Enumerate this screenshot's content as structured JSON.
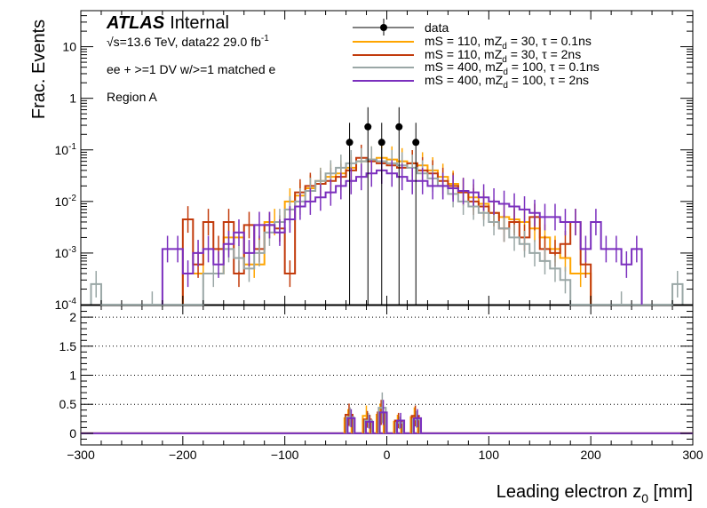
{
  "chart_data": [
    {
      "type": "histogram",
      "panel": "main",
      "ylabel": "Frac. Events",
      "yscale": "log",
      "ylim": [
        0.0001,
        50
      ],
      "xlim": [
        -300,
        300
      ],
      "x_ticks": [
        "−300",
        "−200",
        "−100",
        "0",
        "100",
        "200",
        "300"
      ],
      "y_ticks": [
        {
          "base": "10",
          "exp": "-4",
          "v": 0.0001
        },
        {
          "base": "10",
          "exp": "-3",
          "v": 0.001
        },
        {
          "base": "10",
          "exp": "-2",
          "v": 0.01
        },
        {
          "base": "10",
          "exp": "-1",
          "v": 0.1
        },
        {
          "base": "1",
          "exp": "",
          "v": 1
        },
        {
          "base": "10",
          "exp": "",
          "v": 10
        }
      ],
      "annotations": {
        "atlas": "ATLAS",
        "internal": "Internal",
        "energy": "√s=13.6 TeV, data22 29.0 fb",
        "energy_sup": "-1",
        "selection": "ee + >=1 DV w/>=1 matched e",
        "region": "Region A"
      },
      "data": {
        "name": "data",
        "x": [
          -36.5,
          -18.5,
          -5,
          12,
          28.5
        ],
        "y": [
          0.14,
          0.28,
          0.14,
          0.28,
          0.14
        ]
      },
      "series": [
        {
          "name": "mS = 110, mZ_d = 30, τ = 0.1ns",
          "legend": "mS = 110, mZ",
          "legend_sub": "d",
          "legend_rest": " = 30, τ = 0.1ns",
          "color": "#ffa500",
          "bin_edges": [
            -200,
            -160,
            -140,
            -120,
            -100,
            -90,
            -80,
            -70,
            -60,
            -50,
            -40,
            -30,
            -20,
            -10,
            0,
            10,
            20,
            30,
            40,
            50,
            60,
            70,
            80,
            90,
            100,
            110,
            120,
            130,
            140,
            150,
            160,
            170,
            180,
            200
          ],
          "values": [
            0.0004,
            0.002,
            0.0006,
            0.004,
            0.01,
            0.013,
            0.018,
            0.025,
            0.03,
            0.035,
            0.045,
            0.06,
            0.065,
            0.07,
            0.065,
            0.06,
            0.055,
            0.05,
            0.04,
            0.03,
            0.022,
            0.016,
            0.012,
            0.009,
            0.006,
            0.005,
            0.0045,
            0.004,
            0.003,
            0.002,
            0.0012,
            0.0008,
            0.0004
          ]
        },
        {
          "name": "mS = 110, mZ_d = 30, τ = 2ns",
          "legend": "mS = 110, mZ",
          "legend_sub": "d",
          "legend_rest": " = 30, τ = 2ns",
          "color": "#c23b0c",
          "bin_edges": [
            -200,
            -190,
            -180,
            -170,
            -160,
            -150,
            -140,
            -130,
            -120,
            -110,
            -100,
            -90,
            -80,
            -70,
            -60,
            -50,
            -40,
            -30,
            -20,
            -10,
            0,
            10,
            20,
            30,
            40,
            50,
            60,
            70,
            80,
            90,
            100,
            110,
            120,
            130,
            140,
            150,
            160,
            170,
            180,
            190,
            200
          ],
          "values": [
            0.0045,
            0.0006,
            0.004,
            0.0012,
            0.004,
            0.0004,
            0.0035,
            0.0012,
            0.0035,
            0.003,
            0.0004,
            0.015,
            0.02,
            0.022,
            0.025,
            0.03,
            0.04,
            0.07,
            0.06,
            0.055,
            0.05,
            0.045,
            0.055,
            0.04,
            0.035,
            0.025,
            0.02,
            0.015,
            0.01,
            0.008,
            0.006,
            0.003,
            0.004,
            0.002,
            0.005,
            0.0012,
            0.001,
            0.0015,
            0.004,
            0.0006
          ]
        },
        {
          "name": "mS = 400, mZ_d = 100, τ = 0.1ns",
          "legend": "mS = 400, mZ",
          "legend_sub": "d",
          "legend_rest": " = 100, τ = 0.1ns",
          "color": "#9aa7a6",
          "bin_edges": [
            -290,
            -280,
            -180,
            -160,
            -150,
            -140,
            -130,
            -120,
            -110,
            -100,
            -90,
            -80,
            -70,
            -60,
            -50,
            -40,
            -30,
            -20,
            -10,
            0,
            10,
            20,
            30,
            40,
            50,
            60,
            70,
            80,
            90,
            100,
            110,
            120,
            130,
            140,
            150,
            160,
            170,
            180,
            280,
            290
          ],
          "values": [
            0.00025,
            0.0001,
            0.0004,
            0.0012,
            0.0008,
            0.0005,
            0.001,
            0.0025,
            0.004,
            0.007,
            0.01,
            0.016,
            0.025,
            0.035,
            0.045,
            0.055,
            0.06,
            0.065,
            0.06,
            0.055,
            0.05,
            0.045,
            0.035,
            0.028,
            0.02,
            0.014,
            0.01,
            0.008,
            0.006,
            0.004,
            0.003,
            0.002,
            0.0015,
            0.001,
            0.0007,
            0.0005,
            0.0003,
            0.0001,
            0.00025
          ]
        },
        {
          "name": "mS = 400, mZ_d = 100, τ = 2ns",
          "legend": "mS = 400, mZ",
          "legend_sub": "d",
          "legend_rest": " = 100, τ = 2ns",
          "color": "#7b2fbe",
          "bin_edges": [
            -220,
            -210,
            -200,
            -190,
            -180,
            -170,
            -160,
            -150,
            -140,
            -130,
            -120,
            -110,
            -100,
            -90,
            -80,
            -70,
            -60,
            -50,
            -40,
            -30,
            -20,
            -10,
            0,
            10,
            20,
            30,
            40,
            50,
            60,
            70,
            80,
            90,
            100,
            110,
            120,
            130,
            140,
            150,
            160,
            170,
            180,
            190,
            200,
            210,
            220,
            230,
            240,
            250
          ],
          "values": [
            0.0012,
            0.0012,
            0.0004,
            0.001,
            0.0012,
            0.0006,
            0.0015,
            0.0025,
            0.001,
            0.0035,
            0.0035,
            0.0025,
            0.0045,
            0.008,
            0.01,
            0.012,
            0.015,
            0.02,
            0.025,
            0.03,
            0.035,
            0.04,
            0.035,
            0.03,
            0.025,
            0.025,
            0.02,
            0.02,
            0.018,
            0.016,
            0.015,
            0.012,
            0.01,
            0.009,
            0.008,
            0.007,
            0.006,
            0.005,
            0.005,
            0.004,
            0.004,
            0.0012,
            0.004,
            0.0012,
            0.0012,
            0.0006,
            0.0012
          ]
        }
      ]
    },
    {
      "type": "histogram",
      "panel": "ratio",
      "xlabel": "Leading electron z",
      "xlabel_sub": "0",
      "xlabel_rest": " [mm]",
      "ylim": [
        -0.2,
        2.2
      ],
      "y_ticks": [
        "0",
        "0.5",
        "1",
        "1.5",
        "2"
      ],
      "y_tick_values": [
        0,
        0.5,
        1,
        1.5,
        2
      ],
      "gridlines_y": [
        0.5,
        1,
        1.5,
        2
      ],
      "xlim": [
        -300,
        300
      ],
      "spikes": [
        {
          "x": -36.5,
          "values": {
            "orange": 0.26,
            "red": 0.32,
            "gray": 0.28,
            "purple": 0.26
          }
        },
        {
          "x": -18.5,
          "values": {
            "orange": 0.3,
            "red": 0.24,
            "gray": 0.22,
            "purple": 0.2
          }
        },
        {
          "x": -5,
          "values": {
            "orange": 0.32,
            "red": 0.36,
            "gray": 0.44,
            "purple": 0.36
          }
        },
        {
          "x": 12,
          "values": {
            "orange": 0.2,
            "red": 0.22,
            "gray": 0.18,
            "purple": 0.22
          }
        },
        {
          "x": 28.5,
          "values": {
            "orange": 0.28,
            "red": 0.3,
            "gray": 0.24,
            "purple": 0.26
          }
        }
      ]
    }
  ]
}
